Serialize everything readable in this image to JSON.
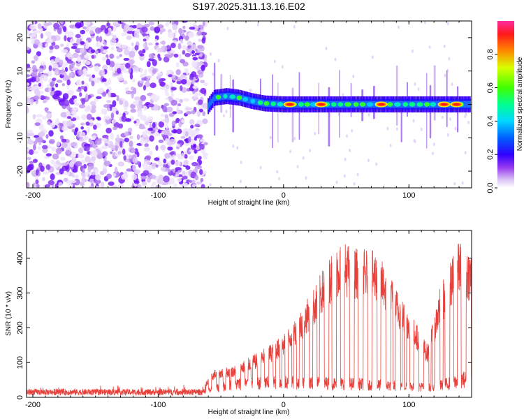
{
  "title": "S197.2025.311.13.16.E02",
  "chart_data": [
    {
      "type": "heatmap",
      "name": "spectrogram",
      "xlabel": "Height of straight line (km)",
      "ylabel": "Frequency (Hz)",
      "xlim": [
        -205,
        150
      ],
      "ylim": [
        -25,
        25
      ],
      "xticks": [
        -200,
        -100,
        0,
        100
      ],
      "yticks": [
        -20,
        -10,
        0,
        10,
        20
      ],
      "colorbar": {
        "label": "Normalized spectral amplitude",
        "range": [
          0.0,
          1.0
        ],
        "ticks": [
          0.0,
          0.2,
          0.4,
          0.6,
          0.8
        ],
        "tick_labels": [
          "0.0",
          "0.2",
          "0.4",
          "0.6",
          "0.8"
        ]
      },
      "regions": {
        "noise_x": [
          -205,
          -62
        ],
        "signal_x": [
          -62,
          150
        ],
        "signal_frequency": [
          {
            "x": -60,
            "f": -0.5
          },
          {
            "x": -55,
            "f": 2.0
          },
          {
            "x": -45,
            "f": 2.5
          },
          {
            "x": -35,
            "f": 2.0
          },
          {
            "x": -25,
            "f": 1.0
          },
          {
            "x": -15,
            "f": 0.3
          },
          {
            "x": 0,
            "f": 0.0
          },
          {
            "x": 150,
            "f": 0.0
          }
        ],
        "peaks": [
          {
            "x": 5,
            "f": 0,
            "amplitude": 0.85
          },
          {
            "x": 30,
            "f": 0,
            "amplitude": 0.9
          },
          {
            "x": 78,
            "f": 0,
            "amplitude": 0.9
          },
          {
            "x": 128,
            "f": 0,
            "amplitude": 0.8
          },
          {
            "x": 138,
            "f": 0,
            "amplitude": 0.9
          }
        ]
      }
    },
    {
      "type": "line",
      "name": "snr",
      "xlabel": "Height of straight line (km)",
      "ylabel": "SNR (10 * v/v)",
      "xlim": [
        -205,
        150
      ],
      "ylim": [
        0,
        480
      ],
      "xticks": [
        -200,
        -100,
        0,
        100
      ],
      "yticks": [
        0,
        100,
        200,
        300,
        400
      ],
      "series": [
        {
          "name": "SNR",
          "color": "#e8413c",
          "noise_level": 15,
          "baseline_envelope": [
            {
              "x": -205,
              "v": 15
            },
            {
              "x": -60,
              "v": 20
            },
            {
              "x": -40,
              "v": 40
            },
            {
              "x": 0,
              "v": 45
            },
            {
              "x": 60,
              "v": 40
            },
            {
              "x": 120,
              "v": 30
            },
            {
              "x": 150,
              "v": 60
            }
          ],
          "peak_envelope": [
            {
              "x": -205,
              "v": 30
            },
            {
              "x": -65,
              "v": 30
            },
            {
              "x": -55,
              "v": 80
            },
            {
              "x": -40,
              "v": 90
            },
            {
              "x": -20,
              "v": 130
            },
            {
              "x": 0,
              "v": 180
            },
            {
              "x": 15,
              "v": 260
            },
            {
              "x": 25,
              "v": 320
            },
            {
              "x": 35,
              "v": 400
            },
            {
              "x": 45,
              "v": 450
            },
            {
              "x": 60,
              "v": 430
            },
            {
              "x": 75,
              "v": 420
            },
            {
              "x": 85,
              "v": 350
            },
            {
              "x": 95,
              "v": 280
            },
            {
              "x": 105,
              "v": 220
            },
            {
              "x": 115,
              "v": 150
            },
            {
              "x": 125,
              "v": 320
            },
            {
              "x": 140,
              "v": 450
            },
            {
              "x": 150,
              "v": 420
            }
          ]
        }
      ]
    }
  ]
}
